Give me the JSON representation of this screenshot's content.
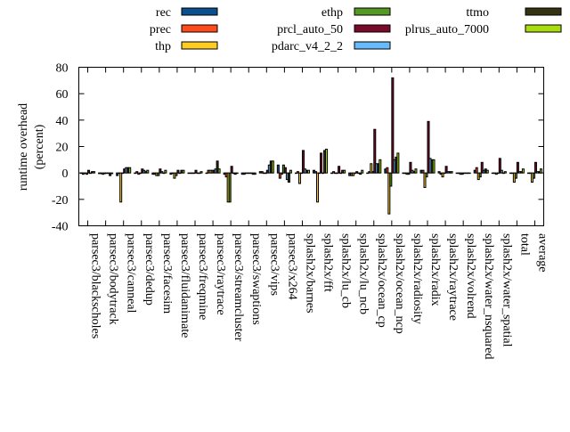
{
  "chart_data": {
    "type": "bar",
    "title": "",
    "xlabel": "",
    "ylabel": "runtime overhead\n(percent)",
    "ylabel_lines": [
      "runtime overhead",
      "(percent)"
    ],
    "ylim": [
      -40,
      80
    ],
    "yticks": [
      -40,
      -20,
      0,
      20,
      40,
      60,
      80
    ],
    "grid": false,
    "legend_placement": "top",
    "categories": [
      "parsec3/blackscholes",
      "parsec3/bodytrack",
      "parsec3/canneal",
      "parsec3/dedup",
      "parsec3/facesim",
      "parsec3/fluidanimate",
      "parsec3/freqmine",
      "parsec3/raytrace",
      "parsec3/streamcluster",
      "parsec3/swaptions",
      "parsec3/vips",
      "parsec3/x264",
      "splash2x/barnes",
      "splash2x/fft",
      "splash2x/lu_cb",
      "splash2x/lu_ncb",
      "splash2x/ocean_cp",
      "splash2x/ocean_ncp",
      "splash2x/radiosity",
      "splash2x/radix",
      "splash2x/raytrace",
      "splash2x/volrend",
      "splash2x/water_nsquared",
      "splash2x/water_spatial",
      "total",
      "average"
    ],
    "series": [
      {
        "name": "rec",
        "color": "#0b4f8e",
        "values": [
          0,
          -0.5,
          -2,
          0,
          -1,
          -1,
          0,
          0,
          -1,
          -1,
          1,
          6,
          0,
          2,
          0,
          -2,
          0,
          3,
          0,
          2,
          1,
          0,
          2,
          0,
          0,
          0
        ]
      },
      {
        "name": "prec",
        "color": "#ff4a1c",
        "values": [
          -1,
          -0.5,
          0,
          1,
          -1,
          0,
          0,
          2,
          -3,
          -1,
          1,
          -4,
          1,
          1,
          1,
          -2,
          1,
          4,
          0,
          2,
          -1,
          0,
          4,
          0,
          0,
          0
        ]
      },
      {
        "name": "thp",
        "color": "#ffcc22",
        "values": [
          0,
          -1,
          -22,
          -1,
          -2,
          -4,
          0,
          2,
          -22,
          0,
          0,
          -1,
          -8,
          -22,
          0,
          -2,
          7,
          -31,
          -1,
          -11,
          -3,
          -1,
          -5,
          -1,
          -7,
          -7
        ]
      },
      {
        "name": "ethp",
        "color": "#559922",
        "values": [
          -1,
          -0.5,
          0,
          0,
          -2,
          -2,
          0,
          2,
          -22,
          0,
          0,
          6,
          0,
          0,
          0,
          0,
          1,
          -10,
          -1,
          -3,
          0,
          -1,
          -3,
          0,
          -4,
          -4
        ]
      },
      {
        "name": "prcl_auto_50",
        "color": "#7a0a2a",
        "values": [
          2,
          0,
          3,
          3,
          3,
          2,
          2,
          2,
          5,
          0,
          2,
          4,
          17,
          15,
          5,
          1,
          33,
          72,
          8,
          39,
          5,
          0,
          8,
          11,
          8,
          8
        ]
      },
      {
        "name": "pdarc_v4_2_2",
        "color": "#66bbff",
        "values": [
          0,
          0,
          4,
          2,
          1,
          0,
          0,
          3,
          0,
          0,
          6,
          -5,
          3,
          0,
          0,
          0,
          7,
          10,
          2,
          11,
          1,
          0,
          2,
          2,
          1,
          1
        ]
      },
      {
        "name": "ttmo",
        "color": "#333311",
        "values": [
          1,
          -2,
          4,
          1,
          0,
          2,
          0,
          9,
          -1,
          -1,
          9,
          -7,
          2,
          17,
          2,
          -1,
          7,
          12,
          1,
          10,
          1,
          0,
          3,
          0,
          1,
          1
        ]
      },
      {
        "name": "plrus_auto_7000",
        "color": "#aadd11",
        "values": [
          1,
          -0.5,
          4,
          2,
          2,
          2,
          1,
          3,
          0,
          -1,
          9,
          2,
          2,
          18,
          2,
          2,
          10,
          15,
          3,
          10,
          1,
          0,
          2,
          1,
          3,
          3
        ]
      }
    ]
  }
}
